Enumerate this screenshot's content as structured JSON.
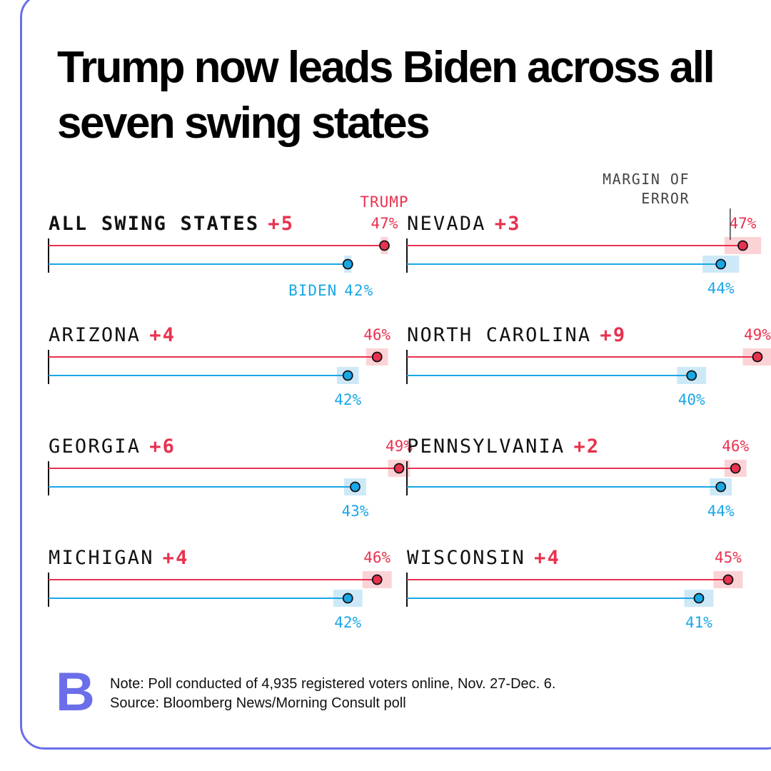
{
  "title": "Trump now leads Biden across all seven swing states",
  "colors": {
    "trump": "#e8324f",
    "biden": "#1aa7e6",
    "trump_band": "#fbd3d6",
    "biden_band": "#cde9f8",
    "brand": "#6b6ee8"
  },
  "annotations": {
    "margin_of_error": [
      "MARGIN OF",
      "ERROR"
    ],
    "trump_label": "TRUMP",
    "biden_label": "BIDEN"
  },
  "chart_data": {
    "type": "dot-range",
    "series": [
      {
        "name": "TRUMP",
        "color": "#e8324f"
      },
      {
        "name": "BIDEN",
        "color": "#1aa7e6"
      }
    ],
    "margin_of_error_pts": 3,
    "panels": [
      {
        "state": "ALL SWING STATES",
        "lead": "+5",
        "trump": 47,
        "biden": 42,
        "trump_label": "47%",
        "biden_label": "42%",
        "moe": 1
      },
      {
        "state": "NEVADA",
        "lead": "+3",
        "trump": 47,
        "biden": 44,
        "trump_label": "47%",
        "biden_label": "44%",
        "moe": 5
      },
      {
        "state": "ARIZONA",
        "lead": "+4",
        "trump": 46,
        "biden": 42,
        "trump_label": "46%",
        "biden_label": "42%",
        "moe": 3
      },
      {
        "state": "NORTH CAROLINA",
        "lead": "+9",
        "trump": 49,
        "biden": 40,
        "trump_label": "49%",
        "biden_label": "40%",
        "moe": 4
      },
      {
        "state": "GEORGIA",
        "lead": "+6",
        "trump": 49,
        "biden": 43,
        "trump_label": "49%",
        "biden_label": "43%",
        "moe": 3
      },
      {
        "state": "PENNSYLVANIA",
        "lead": "+2",
        "trump": 46,
        "biden": 44,
        "trump_label": "46%",
        "biden_label": "44%",
        "moe": 3
      },
      {
        "state": "MICHIGAN",
        "lead": "+4",
        "trump": 46,
        "biden": 42,
        "trump_label": "46%",
        "biden_label": "42%",
        "moe": 4
      },
      {
        "state": "WISCONSIN",
        "lead": "+4",
        "trump": 45,
        "biden": 41,
        "trump_label": "45%",
        "biden_label": "41%",
        "moe": 4
      }
    ]
  },
  "footer": {
    "logo": "B",
    "note": "Note: Poll conducted of 4,935 registered voters online, Nov. 27-Dec. 6.",
    "source": "Source: Bloomberg News/Morning Consult poll"
  }
}
